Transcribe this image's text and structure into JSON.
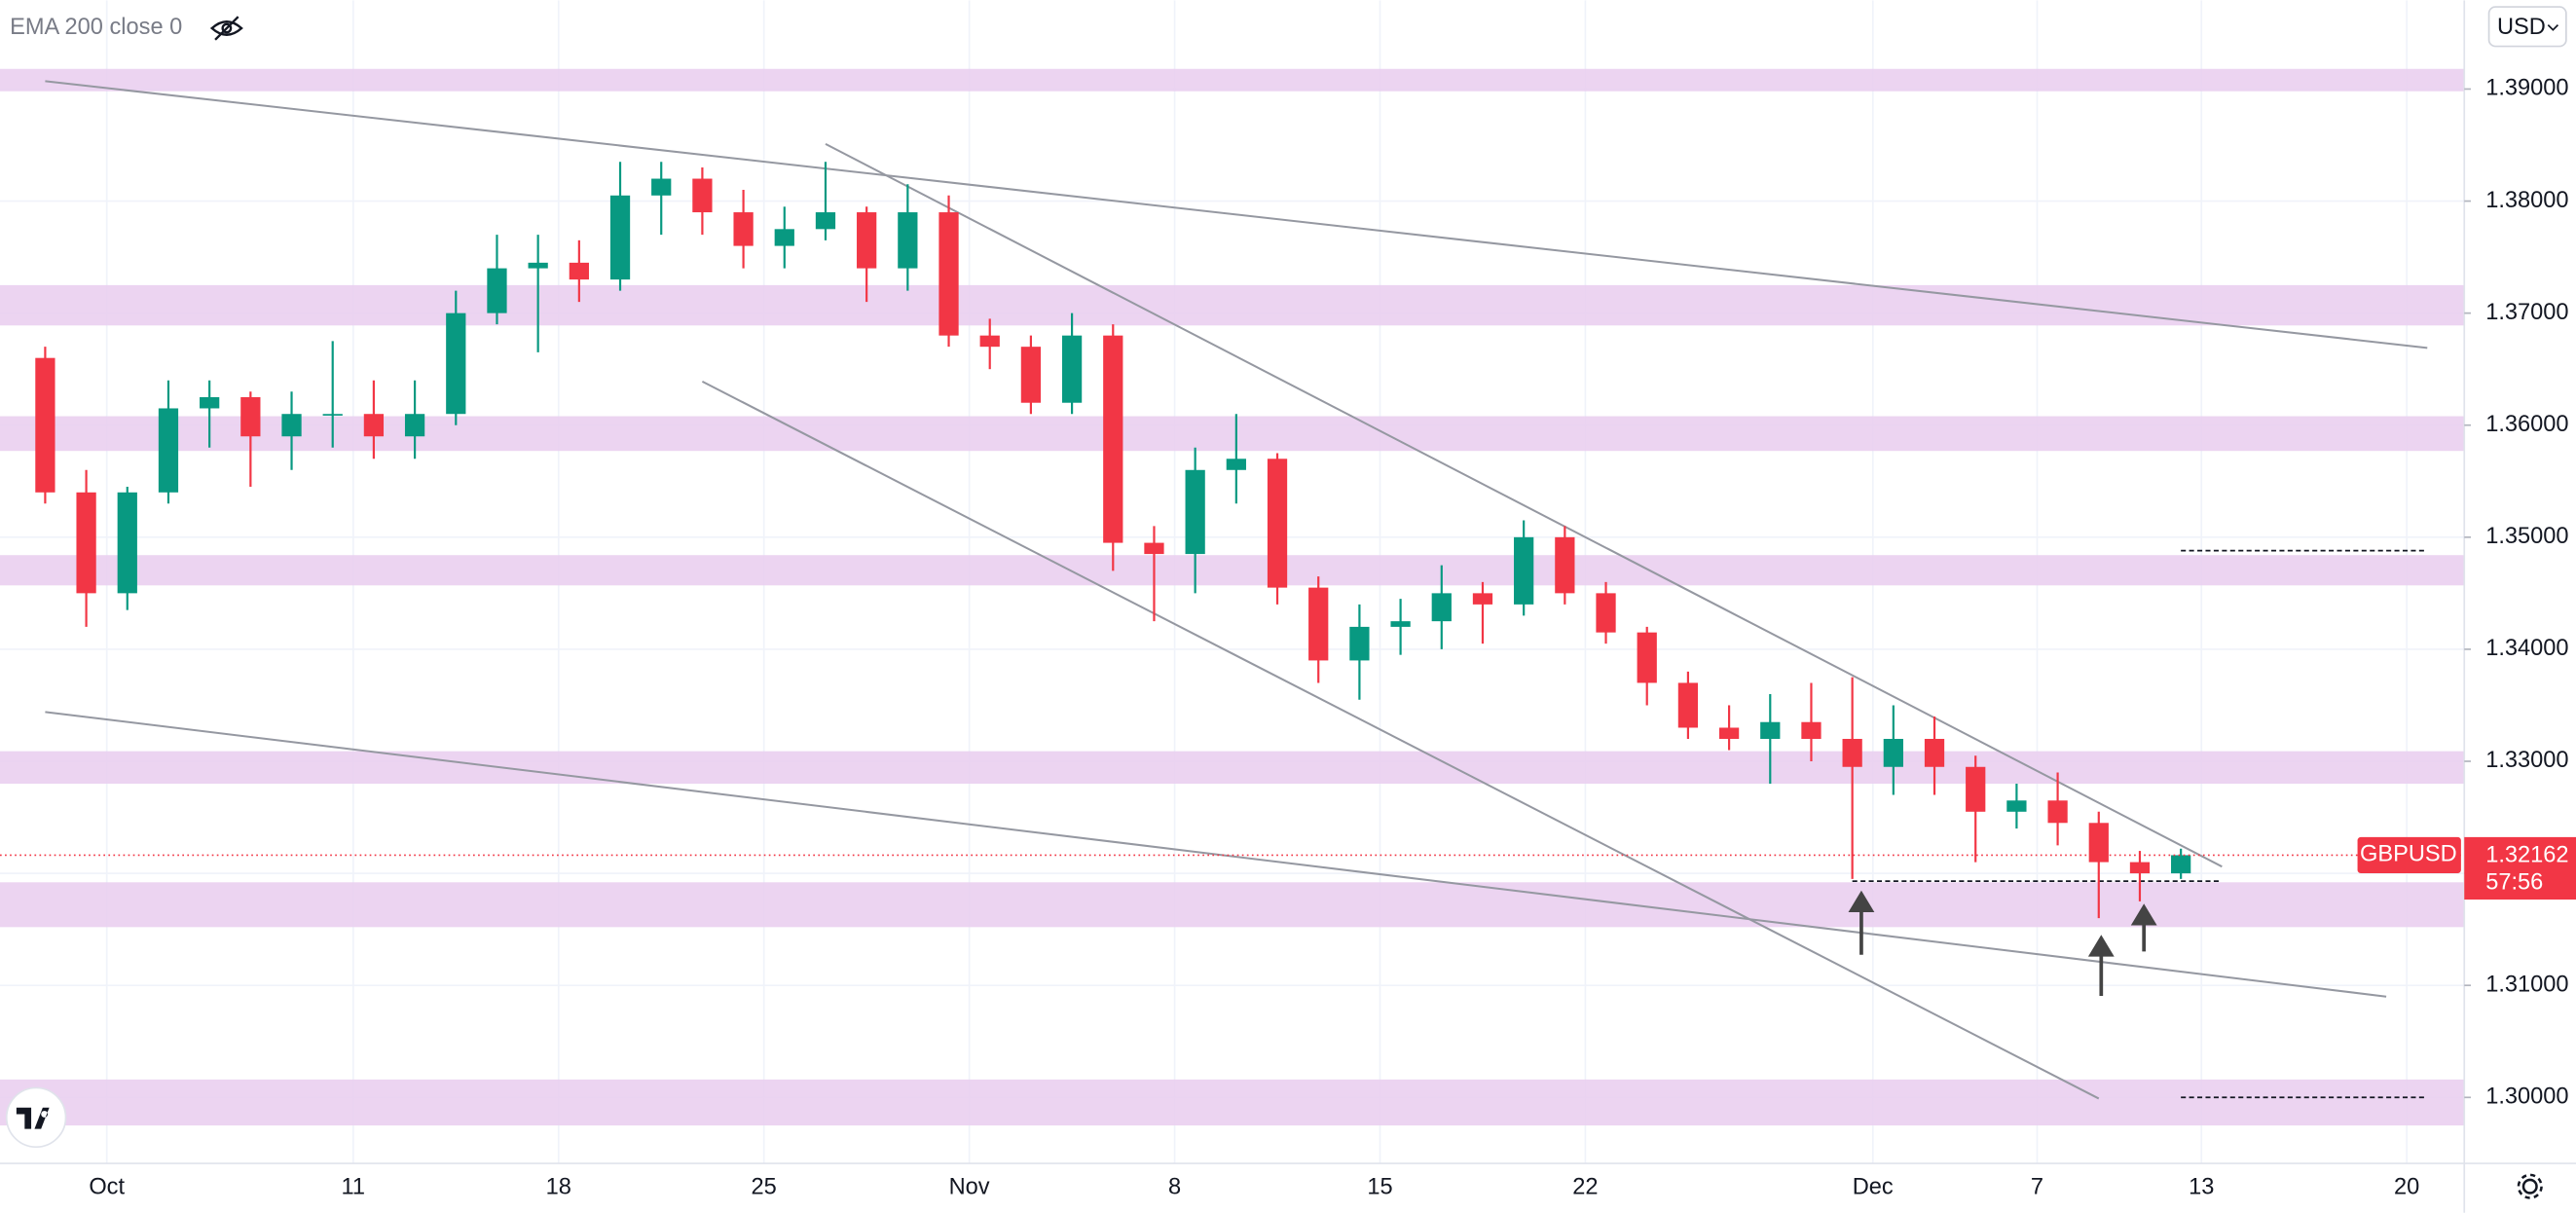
{
  "chart_data": {
    "type": "candlestick",
    "indicator": "EMA 200 close 0",
    "currency": "USD",
    "symbol": "GBPUSD",
    "up_color": "#089981",
    "down_color": "#f23645",
    "zone_color": "#e9cdef",
    "grid": true,
    "x": [
      "Sep 29",
      "Sep 30",
      "Oct 1",
      "Oct 4",
      "Oct 5",
      "Oct 6",
      "Oct 7",
      "Oct 8",
      "Oct 11",
      "Oct 12",
      "Oct 13",
      "Oct 14",
      "Oct 15",
      "Oct 18",
      "Oct 19",
      "Oct 20",
      "Oct 21",
      "Oct 22",
      "Oct 25",
      "Oct 26",
      "Oct 27",
      "Oct 28",
      "Oct 29",
      "Nov 1",
      "Nov 2",
      "Nov 3",
      "Nov 4",
      "Nov 5",
      "Nov 8",
      "Nov 9",
      "Nov 10",
      "Nov 11",
      "Nov 12",
      "Nov 15",
      "Nov 16",
      "Nov 17",
      "Nov 18",
      "Nov 19",
      "Nov 22",
      "Nov 23",
      "Nov 24",
      "Nov 25",
      "Nov 26",
      "Nov 29",
      "Nov 30",
      "Dec 1",
      "Dec 2",
      "Dec 3",
      "Dec 6",
      "Dec 7",
      "Dec 8",
      "Dec 9",
      "Dec 10",
      "Dec 13",
      "Dec 14",
      "Dec 15",
      "Dec 16",
      "Dec 17",
      "Dec 20"
    ],
    "open": [
      1.366,
      1.354,
      1.345,
      1.354,
      1.3615,
      1.3625,
      1.359,
      1.361,
      1.361,
      1.359,
      1.361,
      1.37,
      1.374,
      1.3745,
      1.373,
      1.3805,
      1.382,
      1.379,
      1.376,
      1.3775,
      1.379,
      1.374,
      1.379,
      1.368,
      1.367,
      1.362,
      1.368,
      1.3495,
      1.3485,
      1.356,
      1.357,
      1.3455,
      1.339,
      1.342,
      1.3425,
      1.345,
      1.344,
      1.35,
      1.345,
      1.3415,
      1.337,
      1.333,
      1.332,
      1.3335,
      1.332,
      1.3295,
      1.332,
      1.3295,
      1.3255,
      1.3265,
      1.3245,
      1.321,
      1.32,
      null,
      null,
      null,
      null,
      null,
      null
    ],
    "high": [
      1.367,
      1.356,
      1.3545,
      1.364,
      1.364,
      1.363,
      1.363,
      1.3675,
      1.364,
      1.364,
      1.372,
      1.377,
      1.377,
      1.3765,
      1.3835,
      1.3835,
      1.383,
      1.381,
      1.3795,
      1.3835,
      1.3795,
      1.3815,
      1.3805,
      1.3695,
      1.368,
      1.37,
      1.369,
      1.351,
      1.358,
      1.361,
      1.3575,
      1.3465,
      1.344,
      1.3445,
      1.3475,
      1.346,
      1.3515,
      1.351,
      1.346,
      1.342,
      1.338,
      1.335,
      1.336,
      1.337,
      1.3375,
      1.335,
      1.334,
      1.3305,
      1.328,
      1.329,
      1.3255,
      1.322,
      1.3222,
      null,
      null,
      null,
      null,
      null,
      null
    ],
    "low": [
      1.353,
      1.342,
      1.3435,
      1.353,
      1.358,
      1.3545,
      1.356,
      1.358,
      1.357,
      1.357,
      1.36,
      1.369,
      1.3665,
      1.371,
      1.372,
      1.377,
      1.377,
      1.374,
      1.374,
      1.3765,
      1.371,
      1.372,
      1.367,
      1.365,
      1.361,
      1.361,
      1.347,
      1.3425,
      1.345,
      1.353,
      1.344,
      1.337,
      1.3355,
      1.3395,
      1.34,
      1.3405,
      1.343,
      1.344,
      1.3405,
      1.335,
      1.332,
      1.331,
      1.328,
      1.33,
      1.3195,
      1.327,
      1.327,
      1.321,
      1.324,
      1.3225,
      1.316,
      1.3175,
      1.3195,
      null,
      null,
      null,
      null,
      null,
      null
    ],
    "close": [
      1.354,
      1.345,
      1.354,
      1.3615,
      1.3625,
      1.359,
      1.361,
      1.361,
      1.359,
      1.361,
      1.37,
      1.374,
      1.3745,
      1.373,
      1.3805,
      1.382,
      1.379,
      1.376,
      1.3775,
      1.379,
      1.374,
      1.379,
      1.368,
      1.367,
      1.362,
      1.368,
      1.3495,
      1.3485,
      1.356,
      1.357,
      1.3455,
      1.339,
      1.342,
      1.3425,
      1.345,
      1.344,
      1.35,
      1.345,
      1.3415,
      1.337,
      1.333,
      1.332,
      1.3335,
      1.332,
      1.3295,
      1.332,
      1.3295,
      1.3255,
      1.3265,
      1.3245,
      1.321,
      1.32,
      1.32162,
      null,
      null,
      null,
      null,
      null,
      null
    ],
    "ylim": [
      1.29411,
      1.39792
    ],
    "yticks": [
      {
        "value": 1.3,
        "label": "1.30000"
      },
      {
        "value": 1.31,
        "label": "1.31000"
      },
      {
        "value": 1.32,
        "label": "1.32000"
      },
      {
        "value": 1.33,
        "label": "1.33000"
      },
      {
        "value": 1.34,
        "label": "1.34000"
      },
      {
        "value": 1.35,
        "label": "1.35000"
      },
      {
        "value": 1.36,
        "label": "1.36000"
      },
      {
        "value": 1.37,
        "label": "1.37000"
      },
      {
        "value": 1.38,
        "label": "1.38000"
      },
      {
        "value": 1.39,
        "label": "1.39000"
      }
    ],
    "xticks": [
      {
        "value": "Oct 1",
        "label": "Oct"
      },
      {
        "value": "Oct 11",
        "label": "11"
      },
      {
        "value": "Oct 18",
        "label": "18"
      },
      {
        "value": "Oct 25",
        "label": "25"
      },
      {
        "value": "Nov 1",
        "label": "Nov"
      },
      {
        "value": "Nov 8",
        "label": "8"
      },
      {
        "value": "Nov 15",
        "label": "15"
      },
      {
        "value": "Nov 22",
        "label": "22"
      },
      {
        "value": "Dec 1",
        "label": "Dec"
      },
      {
        "value": "Dec 7",
        "label": "7"
      },
      {
        "value": "Dec 13",
        "label": "13"
      },
      {
        "value": "Dec 20",
        "label": "20"
      }
    ],
    "zones": [
      [
        1.3898,
        1.3918
      ],
      [
        1.3689,
        1.3725
      ],
      [
        1.3577,
        1.3608
      ],
      [
        1.3457,
        1.3484
      ],
      [
        1.328,
        1.3309
      ],
      [
        1.3152,
        1.3192
      ],
      [
        1.2975,
        1.3016
      ]
    ],
    "trendlines": [
      {
        "from": [
          "Sep 29",
          1.3907
        ],
        "to": [
          "Dec 20",
          1.3669
        ]
      },
      {
        "from": [
          "Sep 29",
          1.3344
        ],
        "to": [
          "Dec 17",
          1.309
        ]
      },
      {
        "from": [
          "Oct 26",
          1.3851
        ],
        "to": [
          "Dec 13",
          1.3206
        ]
      },
      {
        "from": [
          "Oct 21",
          1.3639
        ],
        "to": [
          "Dec 8",
          1.2999
        ]
      }
    ],
    "levels": [
      {
        "value": 1.3488,
        "from": "Dec 10",
        "to": "Dec 20"
      },
      {
        "value": 1.3193,
        "from": "Nov 30",
        "to": "Dec 13"
      },
      {
        "value": 1.3,
        "from": "Dec 10",
        "to": "Dec 20"
      }
    ],
    "last_price": {
      "value": 1.32162,
      "countdown": "57:56"
    }
  }
}
